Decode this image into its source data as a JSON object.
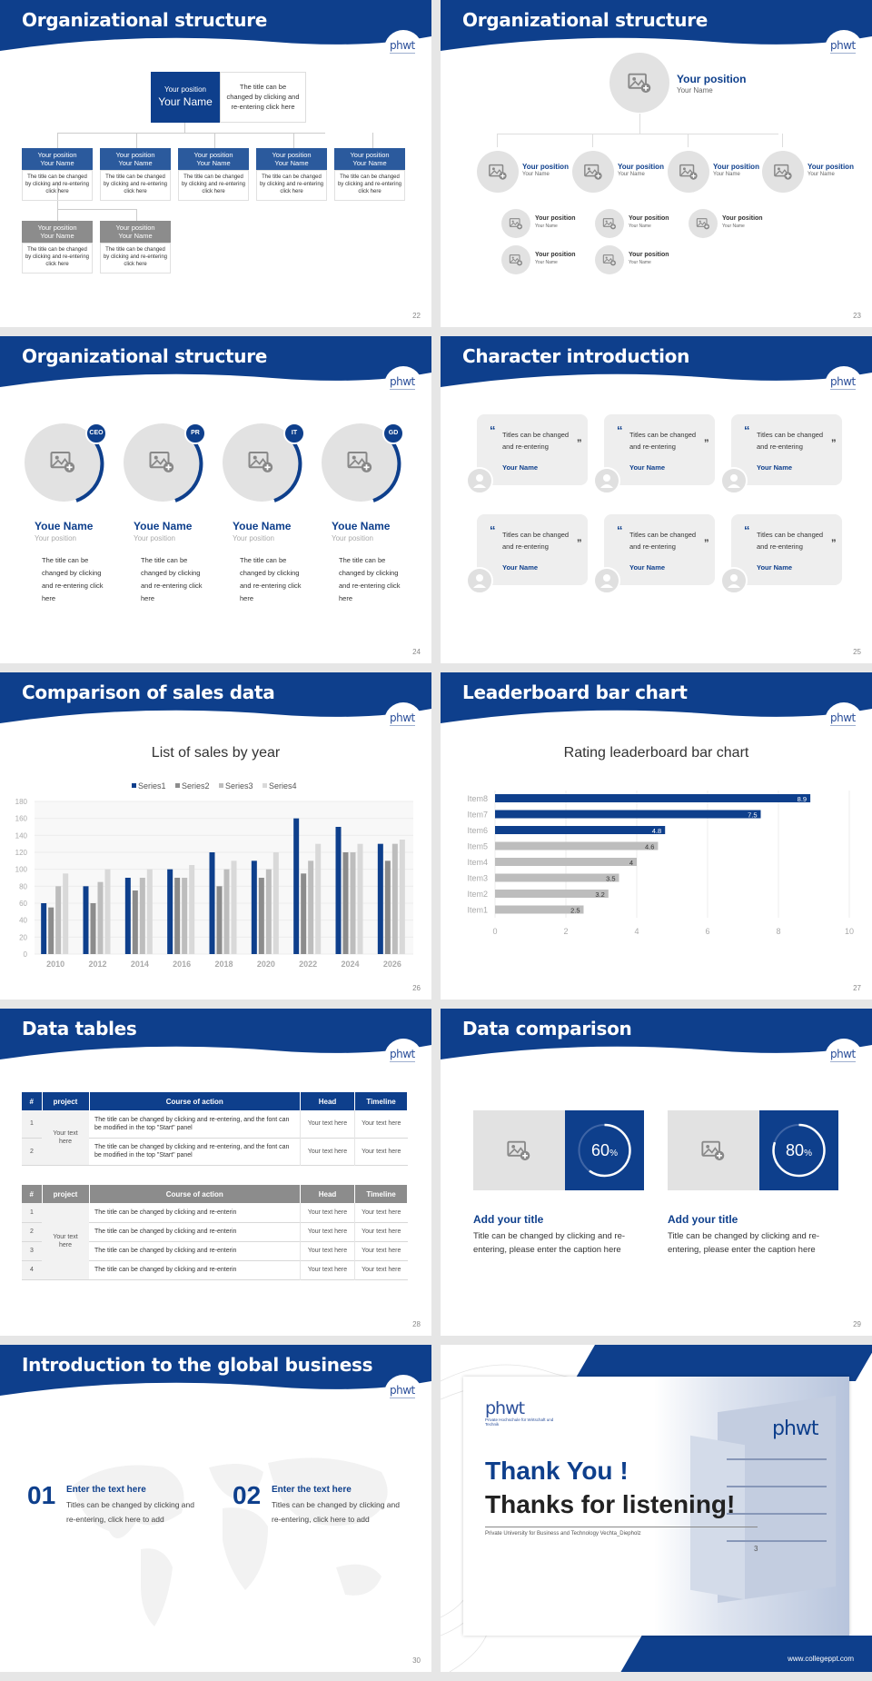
{
  "brand": "phwt",
  "slides": {
    "s22": {
      "title": "Organizational structure",
      "page": "22",
      "top_pos": "Your position",
      "top_name": "Your Name",
      "top_desc": "The title can be changed by clicking and re-entering click here",
      "pos": "Your position",
      "name": "Your Name",
      "desc": "The title can be changed by clicking and re-entering click here"
    },
    "s23": {
      "title": "Organizational structure",
      "page": "23",
      "pos": "Your position",
      "name": "Your Name"
    },
    "s24": {
      "title": "Organizational structure",
      "page": "24",
      "people": [
        {
          "badge": "CEO",
          "name": "Youe Name",
          "pos": "Your position",
          "desc": "The title can be changed by clicking and re-entering click here"
        },
        {
          "badge": "PR",
          "name": "Youe Name",
          "pos": "Your position",
          "desc": "The title can be changed by clicking and re-entering click here"
        },
        {
          "badge": "IT",
          "name": "Youe Name",
          "pos": "Your position",
          "desc": "The title can be changed by clicking and re-entering click here"
        },
        {
          "badge": "GD",
          "name": "Youe Name",
          "pos": "Your position",
          "desc": "The title can be changed by clicking and re-entering click here"
        }
      ]
    },
    "s25": {
      "title": "Character introduction",
      "page": "25",
      "quote": "Titles can be changed and re-entering",
      "name": "Your Name"
    },
    "s26": {
      "title": "Comparison of sales data",
      "page": "26"
    },
    "s27": {
      "title": "Leaderboard bar chart",
      "page": "27"
    },
    "s28": {
      "title": "Data tables",
      "page": "28",
      "headers": [
        "#",
        "project",
        "Course of action",
        "Head",
        "Timeline"
      ],
      "t1": {
        "merged": "Your text here",
        "rows": [
          {
            "n": "1",
            "action": "The title can be changed by clicking and re-entering, and the font can be modified in the top \"Start\" panel",
            "head": "Your text here",
            "time": "Your text here"
          },
          {
            "n": "2",
            "action": "The title can be changed by clicking and re-entering, and the font can be modified in the top \"Start\" panel",
            "head": "Your text here",
            "time": "Your text here"
          }
        ]
      },
      "t2": {
        "merged": "Your text here",
        "rows": [
          {
            "n": "1",
            "action": "The title can be changed by clicking and re-enterin",
            "head": "Your text here",
            "time": "Your text here"
          },
          {
            "n": "2",
            "action": "The title can be changed by clicking and re-enterin",
            "head": "Your text here",
            "time": "Your text here"
          },
          {
            "n": "3",
            "action": "The title can be changed by clicking and re-enterin",
            "head": "Your text here",
            "time": "Your text here"
          },
          {
            "n": "4",
            "action": "The title can be changed by clicking and re-enterin",
            "head": "Your text here",
            "time": "Your text here"
          }
        ]
      }
    },
    "s29": {
      "title": "Data comparison",
      "page": "29",
      "cards": [
        {
          "pct": "60",
          "pct_sign": "%",
          "value": 0.6,
          "title": "Add your title",
          "desc": "Title can be changed by clicking and re-entering, please enter the caption here"
        },
        {
          "pct": "80",
          "pct_sign": "%",
          "value": 0.8,
          "title": "Add your title",
          "desc": "Title can be changed by clicking and re-entering, please enter the caption here"
        }
      ]
    },
    "s30": {
      "title": "Introduction to the global business",
      "page": "30",
      "items": [
        {
          "num": "01",
          "head": "Enter the text here",
          "desc": "Titles can be changed by clicking and re-entering, click here to add"
        },
        {
          "num": "02",
          "head": "Enter the text here",
          "desc": "Titles can be changed by clicking and re-entering, click here to add"
        }
      ]
    },
    "s31": {
      "thank": "Thank You !",
      "thanks": "Thanks for listening!",
      "university": "Private University for Business and Technology Vechta_Diepholz",
      "logo_sub": "Private Hochschule für Wirtschaft und Technik",
      "url": "www.collegeppt.com",
      "page": "3"
    }
  },
  "chart_data": [
    {
      "type": "bar",
      "title": "List of sales by year",
      "categories": [
        "2010",
        "2012",
        "2014",
        "2016",
        "2018",
        "2020",
        "2022",
        "2024",
        "2026"
      ],
      "series": [
        {
          "name": "Series1",
          "values": [
            60,
            80,
            90,
            100,
            120,
            110,
            160,
            150,
            130
          ]
        },
        {
          "name": "Series2",
          "values": [
            55,
            60,
            75,
            90,
            80,
            90,
            95,
            120,
            110
          ]
        },
        {
          "name": "Series3",
          "values": [
            80,
            85,
            90,
            90,
            100,
            100,
            110,
            120,
            130
          ]
        },
        {
          "name": "Series4",
          "values": [
            95,
            100,
            100,
            105,
            110,
            120,
            130,
            130,
            135
          ]
        }
      ],
      "ylim": [
        0,
        180
      ],
      "yticks": [
        "0",
        "20",
        "40",
        "60",
        "80",
        "100",
        "120",
        "140",
        "160",
        "180"
      ],
      "legend": "top"
    },
    {
      "type": "bar",
      "orientation": "horizontal",
      "title": "Rating leaderboard bar chart",
      "categories": [
        "Item8",
        "Item7",
        "Item6",
        "Item5",
        "Item4",
        "Item3",
        "Item2",
        "Item1"
      ],
      "values": [
        8.9,
        7.5,
        4.8,
        4.6,
        4,
        3.5,
        3.2,
        2.5
      ],
      "labels": [
        "8.9",
        "7.5",
        "4.8",
        "4.6",
        "4",
        "3.5",
        "3.2",
        "2.5"
      ],
      "xlim": [
        0,
        10
      ],
      "xticks": [
        "0",
        "2",
        "4",
        "6",
        "8",
        "10"
      ]
    }
  ],
  "colors": {
    "primary": "#0e3f8c",
    "grey": "#b3b3b3",
    "light": "#e2e2e2"
  }
}
